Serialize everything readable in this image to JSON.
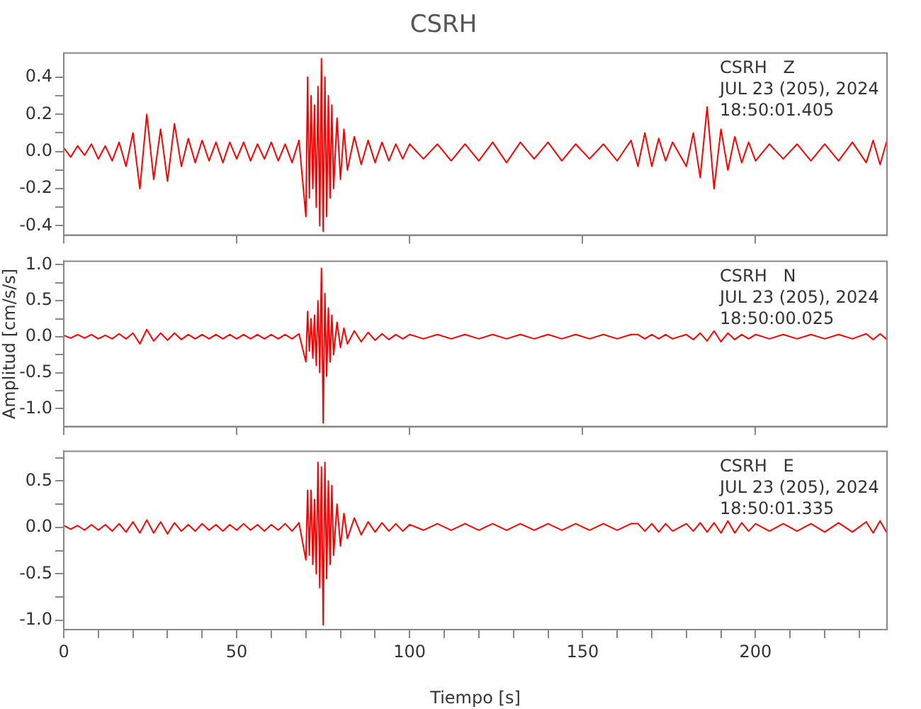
{
  "chart_data": [
    {
      "type": "line",
      "title": "CSRH",
      "marker": "none",
      "tick_labels": "y",
      "annotations": [
        "CSRH   Z",
        "JUL 23 (205), 2024",
        "18:50:01.405"
      ],
      "x": [
        0,
        2,
        4,
        6,
        8,
        10,
        12,
        14,
        16,
        18,
        20,
        22,
        24,
        26,
        28,
        30,
        32,
        34,
        36,
        38,
        40,
        42,
        44,
        46,
        48,
        50,
        52,
        54,
        56,
        58,
        60,
        62,
        64,
        66,
        68,
        70,
        70.5,
        71,
        71.5,
        72,
        72.5,
        73,
        73.5,
        74,
        74.5,
        75,
        75.5,
        76,
        76.5,
        77,
        77.5,
        78,
        79,
        80,
        81,
        82,
        84,
        86,
        88,
        90,
        92,
        94,
        96,
        98,
        100,
        104,
        108,
        112,
        116,
        120,
        124,
        128,
        132,
        136,
        140,
        144,
        148,
        152,
        156,
        160,
        164,
        166,
        168,
        170,
        172,
        174,
        176,
        180,
        182,
        184,
        186,
        188,
        190,
        192,
        194,
        196,
        198,
        200,
        204,
        208,
        212,
        216,
        220,
        224,
        228,
        232,
        234,
        236,
        238
      ],
      "xlim": [
        0,
        238
      ],
      "xticks": [
        {
          "value": 0,
          "label": null
        },
        {
          "value": 50,
          "label": null
        },
        {
          "value": 100,
          "label": null
        },
        {
          "value": 150,
          "label": null
        },
        {
          "value": 200,
          "label": null
        }
      ],
      "ylim": [
        -0.45,
        0.53
      ],
      "yticks": [
        {
          "value": -0.4,
          "label": "-0.4"
        },
        {
          "value": -0.3,
          "label": null
        },
        {
          "value": -0.2,
          "label": "-0.2"
        },
        {
          "value": -0.1,
          "label": null
        },
        {
          "value": 0,
          "label": "0.0"
        },
        {
          "value": 0.1,
          "label": null
        },
        {
          "value": 0.2,
          "label": "0.2"
        },
        {
          "value": 0.3,
          "label": null
        },
        {
          "value": 0.4,
          "label": "0.4"
        }
      ],
      "series": [
        {
          "color": "#ff0000",
          "values": [
            0.02,
            -0.03,
            0.03,
            -0.02,
            0.04,
            -0.04,
            0.03,
            -0.05,
            0.05,
            -0.08,
            0.1,
            -0.2,
            0.2,
            -0.15,
            0.12,
            -0.16,
            0.15,
            -0.08,
            0.07,
            -0.06,
            0.06,
            -0.05,
            0.05,
            -0.06,
            0.05,
            -0.04,
            0.05,
            -0.05,
            0.04,
            -0.04,
            0.05,
            -0.05,
            0.04,
            -0.06,
            0.06,
            -0.35,
            0.4,
            -0.25,
            0.3,
            -0.2,
            0.25,
            -0.3,
            0.35,
            -0.4,
            0.5,
            -0.43,
            0.4,
            -0.35,
            0.3,
            -0.25,
            0.25,
            -0.2,
            0.18,
            -0.15,
            0.12,
            -0.1,
            0.08,
            -0.07,
            0.06,
            -0.06,
            0.05,
            -0.05,
            0.04,
            -0.04,
            0.04,
            -0.04,
            0.04,
            -0.05,
            0.04,
            -0.05,
            0.05,
            -0.06,
            0.05,
            -0.04,
            0.05,
            -0.05,
            0.04,
            -0.04,
            0.04,
            -0.05,
            0.06,
            -0.08,
            0.1,
            -0.08,
            0.07,
            -0.05,
            0.05,
            -0.08,
            0.1,
            -0.14,
            0.24,
            -0.2,
            0.12,
            -0.1,
            0.08,
            -0.06,
            0.05,
            -0.05,
            0.04,
            -0.04,
            0.04,
            -0.05,
            0.04,
            -0.05,
            0.05,
            -0.06,
            0.06,
            -0.07,
            0.06
          ]
        }
      ]
    },
    {
      "type": "line",
      "ylabel": "Amplitud [cm/s/s]",
      "marker": "none",
      "tick_labels": "y",
      "annotations": [
        "CSRH   N",
        "JUL 23 (205), 2024",
        "18:50:00.025"
      ],
      "x": [
        0,
        2,
        4,
        6,
        8,
        10,
        12,
        14,
        16,
        18,
        20,
        22,
        24,
        26,
        28,
        30,
        32,
        34,
        36,
        38,
        40,
        42,
        44,
        46,
        48,
        50,
        52,
        54,
        56,
        58,
        60,
        62,
        64,
        66,
        68,
        70,
        70.5,
        71,
        71.5,
        72,
        72.5,
        73,
        73.5,
        74,
        74.5,
        75,
        75.5,
        76,
        76.5,
        77,
        77.5,
        78,
        79,
        80,
        81,
        82,
        84,
        86,
        88,
        90,
        92,
        94,
        96,
        98,
        100,
        104,
        108,
        112,
        116,
        120,
        124,
        128,
        132,
        136,
        140,
        144,
        148,
        152,
        156,
        160,
        164,
        166,
        168,
        170,
        172,
        174,
        176,
        180,
        182,
        184,
        186,
        188,
        190,
        192,
        194,
        196,
        198,
        200,
        204,
        208,
        212,
        216,
        220,
        224,
        228,
        232,
        234,
        236,
        238
      ],
      "xlim": [
        0,
        238
      ],
      "xticks": [
        {
          "value": 0,
          "label": null
        },
        {
          "value": 50,
          "label": null
        },
        {
          "value": 100,
          "label": null
        },
        {
          "value": 150,
          "label": null
        },
        {
          "value": 200,
          "label": null
        }
      ],
      "ylim": [
        -1.25,
        1.05
      ],
      "yticks": [
        {
          "value": -1,
          "label": "-1.0"
        },
        {
          "value": -0.75,
          "label": null
        },
        {
          "value": -0.5,
          "label": "-0.5"
        },
        {
          "value": -0.25,
          "label": null
        },
        {
          "value": 0,
          "label": "0.0"
        },
        {
          "value": 0.25,
          "label": null
        },
        {
          "value": 0.5,
          "label": "0.5"
        },
        {
          "value": 0.75,
          "label": null
        },
        {
          "value": 1,
          "label": "1.0"
        }
      ],
      "series": [
        {
          "color": "#ff0000",
          "values": [
            0.02,
            -0.02,
            0.03,
            -0.02,
            0.03,
            -0.03,
            0.02,
            -0.03,
            0.04,
            -0.03,
            0.05,
            -0.1,
            0.1,
            -0.06,
            0.05,
            -0.05,
            0.05,
            -0.04,
            0.03,
            -0.03,
            0.03,
            -0.03,
            0.03,
            -0.03,
            0.03,
            -0.03,
            0.03,
            -0.03,
            0.03,
            -0.03,
            0.03,
            -0.03,
            0.03,
            -0.03,
            0.04,
            -0.35,
            0.35,
            -0.2,
            0.25,
            -0.3,
            0.3,
            -0.4,
            0.5,
            -0.5,
            0.95,
            -1.2,
            0.6,
            -0.55,
            0.4,
            -0.35,
            0.3,
            -0.25,
            0.2,
            -0.15,
            0.12,
            -0.1,
            0.08,
            -0.07,
            0.06,
            -0.05,
            0.04,
            -0.04,
            0.03,
            -0.03,
            0.03,
            -0.03,
            0.03,
            -0.03,
            0.03,
            -0.03,
            0.03,
            -0.03,
            0.03,
            -0.03,
            0.03,
            -0.03,
            0.03,
            -0.03,
            0.03,
            -0.03,
            0.03,
            0.03,
            -0.03,
            0.03,
            -0.03,
            0.03,
            -0.03,
            0.03,
            -0.04,
            0.05,
            -0.06,
            0.08,
            -0.07,
            0.05,
            -0.04,
            0.03,
            -0.03,
            0.03,
            -0.03,
            0.03,
            -0.03,
            0.03,
            -0.03,
            0.03,
            -0.03,
            0.04,
            -0.04,
            0.04,
            -0.04
          ]
        }
      ]
    },
    {
      "type": "line",
      "xlabel": "Tiempo [s]",
      "marker": "none",
      "annotations": [
        "CSRH   E",
        "JUL 23 (205), 2024",
        "18:50:01.335"
      ],
      "x": [
        0,
        2,
        4,
        6,
        8,
        10,
        12,
        14,
        16,
        18,
        20,
        22,
        24,
        26,
        28,
        30,
        32,
        34,
        36,
        38,
        40,
        42,
        44,
        46,
        48,
        50,
        52,
        54,
        56,
        58,
        60,
        62,
        64,
        66,
        68,
        70,
        70.5,
        71,
        71.5,
        72,
        72.5,
        73,
        73.5,
        74,
        74.5,
        75,
        75.5,
        76,
        76.5,
        77,
        77.5,
        78,
        79,
        80,
        81,
        82,
        84,
        86,
        88,
        90,
        92,
        94,
        96,
        98,
        100,
        104,
        108,
        112,
        116,
        120,
        124,
        128,
        132,
        136,
        140,
        144,
        148,
        152,
        156,
        160,
        164,
        166,
        168,
        170,
        172,
        174,
        176,
        180,
        182,
        184,
        186,
        188,
        190,
        192,
        194,
        196,
        198,
        200,
        204,
        208,
        212,
        216,
        220,
        224,
        228,
        232,
        234,
        236,
        238
      ],
      "xlim": [
        0,
        238
      ],
      "xticks": [
        0,
        {
          "value": 10,
          "label": null
        },
        {
          "value": 20,
          "label": null
        },
        {
          "value": 30,
          "label": null
        },
        {
          "value": 40,
          "label": null
        },
        50,
        {
          "value": 60,
          "label": null
        },
        {
          "value": 70,
          "label": null
        },
        {
          "value": 80,
          "label": null
        },
        {
          "value": 90,
          "label": null
        },
        100,
        {
          "value": 110,
          "label": null
        },
        {
          "value": 120,
          "label": null
        },
        {
          "value": 130,
          "label": null
        },
        {
          "value": 140,
          "label": null
        },
        150,
        {
          "value": 160,
          "label": null
        },
        {
          "value": 170,
          "label": null
        },
        {
          "value": 180,
          "label": null
        },
        {
          "value": 190,
          "label": null
        },
        200,
        {
          "value": 210,
          "label": null
        },
        {
          "value": 220,
          "label": null
        },
        {
          "value": 230,
          "label": null
        }
      ],
      "ylim": [
        -1.1,
        0.82
      ],
      "yticks": [
        {
          "value": -1,
          "label": "-1.0"
        },
        {
          "value": -0.75,
          "label": null
        },
        {
          "value": -0.5,
          "label": "-0.5"
        },
        {
          "value": -0.25,
          "label": null
        },
        {
          "value": 0,
          "label": "0.0"
        },
        {
          "value": 0.25,
          "label": null
        },
        {
          "value": 0.5,
          "label": "0.5"
        },
        {
          "value": 0.75,
          "label": null
        }
      ],
      "series": [
        {
          "color": "#ff0000",
          "values": [
            0.02,
            -0.02,
            0.02,
            -0.03,
            0.03,
            -0.03,
            0.03,
            -0.04,
            0.04,
            -0.05,
            0.06,
            -0.06,
            0.08,
            -0.06,
            0.06,
            -0.07,
            0.05,
            -0.04,
            0.03,
            -0.04,
            0.04,
            -0.03,
            0.03,
            -0.04,
            0.03,
            -0.03,
            0.04,
            -0.03,
            0.03,
            -0.04,
            0.03,
            -0.03,
            0.04,
            -0.04,
            0.05,
            -0.35,
            0.4,
            -0.3,
            0.4,
            -0.4,
            0.3,
            -0.5,
            0.7,
            -0.65,
            0.65,
            -1.05,
            0.7,
            -0.55,
            0.5,
            -0.4,
            0.45,
            -0.3,
            0.25,
            -0.2,
            0.15,
            -0.12,
            0.1,
            -0.08,
            0.06,
            -0.05,
            0.05,
            -0.04,
            0.04,
            -0.04,
            0.03,
            -0.03,
            0.04,
            -0.03,
            0.04,
            -0.03,
            0.04,
            -0.03,
            0.04,
            -0.03,
            0.04,
            -0.03,
            0.04,
            -0.03,
            0.04,
            -0.03,
            0.04,
            0.04,
            -0.04,
            0.04,
            -0.05,
            0.04,
            -0.04,
            0.04,
            -0.04,
            0.05,
            -0.05,
            0.05,
            -0.06,
            0.07,
            -0.06,
            0.05,
            -0.04,
            0.04,
            -0.04,
            0.04,
            -0.04,
            0.04,
            -0.05,
            0.05,
            -0.05,
            0.06,
            -0.06,
            0.07,
            -0.06
          ]
        }
      ]
    }
  ]
}
